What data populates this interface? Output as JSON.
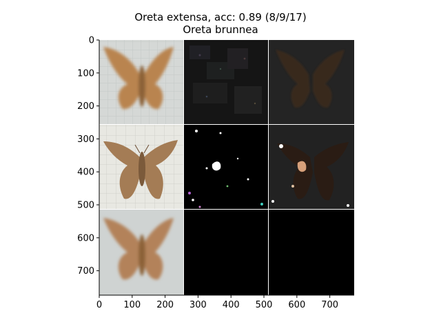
{
  "figure": {
    "title_line1": "Oreta extensa, acc: 0.89 (8/9/17)",
    "title_line2": "Oreta brunnea"
  },
  "axes": {
    "y_ticks": [
      "0",
      "100",
      "200",
      "300",
      "400",
      "500",
      "600",
      "700"
    ],
    "x_ticks": [
      "0",
      "100",
      "200",
      "300",
      "400",
      "500",
      "600",
      "700"
    ],
    "x_range": [
      0,
      774
    ],
    "y_range": [
      0,
      774
    ]
  },
  "grid_panels": [
    {
      "row": 0,
      "col": 0,
      "content": "moth photo (orange-brown, blurred, light grid background)"
    },
    {
      "row": 0,
      "col": 1,
      "content": "dark noisy saliency map"
    },
    {
      "row": 0,
      "col": 2,
      "content": "dark masked moth overlay"
    },
    {
      "row": 1,
      "col": 0,
      "content": "moth photo (brown, on white grid background)"
    },
    {
      "row": 1,
      "col": 1,
      "content": "black map with sparse bright spots"
    },
    {
      "row": 1,
      "col": 2,
      "content": "dark moth silhouette with bright patches"
    },
    {
      "row": 2,
      "col": 0,
      "content": "blurred orange-brown moth photo"
    },
    {
      "row": 2,
      "col": 1,
      "content": "black"
    },
    {
      "row": 2,
      "col": 2,
      "content": "black"
    }
  ]
}
